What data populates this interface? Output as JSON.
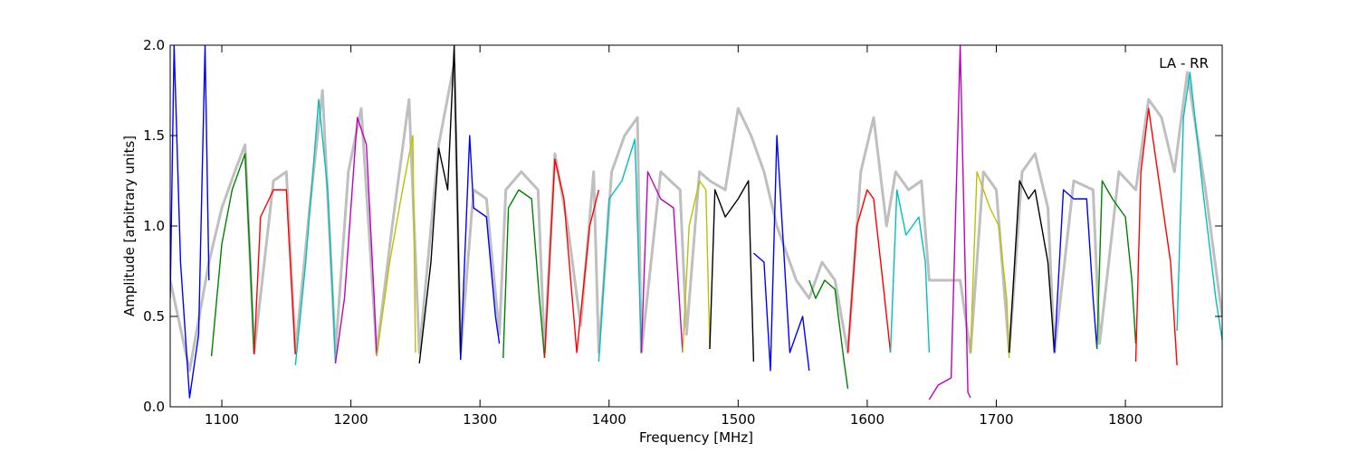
{
  "chart_data": {
    "type": "line",
    "annotation": "LA - RR",
    "xlabel": "Frequency [MHz]",
    "ylabel": "Amplitude [arbitrary units]",
    "xlim": [
      1060,
      1875
    ],
    "ylim": [
      0,
      2
    ],
    "xticks": [
      1100,
      1200,
      1300,
      1400,
      1500,
      1600,
      1700,
      1800
    ],
    "yticks": [
      {
        "value": 0,
        "label": "0.0"
      },
      {
        "value": 0.5,
        "label": "0.5"
      },
      {
        "value": 1,
        "label": "1.0"
      },
      {
        "value": 1.5,
        "label": "1.5"
      },
      {
        "value": 2,
        "label": "2.0"
      }
    ],
    "series": [
      {
        "color": "#bfbfbf",
        "x": [
          1060,
          1075,
          1090,
          1100,
          1110,
          1118,
          1125,
          1140,
          1150,
          1157,
          1168,
          1178,
          1188,
          1198,
          1208,
          1220,
          1232,
          1245,
          1253,
          1268,
          1280,
          1285,
          1295,
          1305,
          1315,
          1320,
          1332,
          1345,
          1350,
          1358,
          1368,
          1378,
          1388,
          1392,
          1402,
          1412,
          1422,
          1425,
          1440,
          1455,
          1460,
          1470,
          1478,
          1490,
          1500,
          1510,
          1520,
          1530,
          1545,
          1555,
          1565,
          1575,
          1585,
          1595,
          1605,
          1615,
          1622,
          1632,
          1642,
          1648,
          1660,
          1672,
          1680,
          1690,
          1700,
          1710,
          1720,
          1730,
          1740,
          1745,
          1760,
          1775,
          1780,
          1795,
          1808,
          1818,
          1828,
          1838,
          1848,
          1862,
          1875
        ],
        "values": [
          0.7,
          0.2,
          0.8,
          1.1,
          1.3,
          1.45,
          0.3,
          1.25,
          1.3,
          0.3,
          1.1,
          1.75,
          0.3,
          1.3,
          1.65,
          0.3,
          1.0,
          1.7,
          0.3,
          1.45,
          1.9,
          0.3,
          1.2,
          1.15,
          0.4,
          1.2,
          1.3,
          1.2,
          0.3,
          1.4,
          1.0,
          0.45,
          1.3,
          0.3,
          1.3,
          1.5,
          1.6,
          0.3,
          1.3,
          1.2,
          0.4,
          1.3,
          1.25,
          1.2,
          1.65,
          1.5,
          1.3,
          1.0,
          0.7,
          0.6,
          0.8,
          0.7,
          0.3,
          1.3,
          1.6,
          1.0,
          1.3,
          1.2,
          1.25,
          0.7,
          0.7,
          0.7,
          0.3,
          1.3,
          1.2,
          0.3,
          1.3,
          1.4,
          1.1,
          0.3,
          1.25,
          1.2,
          0.35,
          1.3,
          1.2,
          1.7,
          1.6,
          1.3,
          1.85,
          1.2,
          0.5
        ]
      },
      {
        "color": "#0000ff",
        "x": [
          1060,
          1063,
          1068,
          1075,
          1082,
          1087,
          1090
        ],
        "values": [
          0.6,
          2.0,
          0.8,
          0.05,
          0.4,
          2.0,
          0.7
        ]
      },
      {
        "color": "#008000",
        "x": [
          1092,
          1100,
          1108,
          1118,
          1122,
          1125
        ],
        "values": [
          0.28,
          0.9,
          1.2,
          1.4,
          0.8,
          0.29
        ]
      },
      {
        "color": "#ff0000",
        "x": [
          1125,
          1130,
          1140,
          1150,
          1153,
          1157
        ],
        "values": [
          0.29,
          1.05,
          1.2,
          1.2,
          0.8,
          0.29
        ]
      },
      {
        "color": "#00bfbf",
        "x": [
          1157,
          1165,
          1175,
          1182,
          1186,
          1188
        ],
        "values": [
          0.23,
          0.8,
          1.7,
          1.2,
          0.6,
          0.24
        ]
      },
      {
        "color": "#bf00bf",
        "x": [
          1188,
          1195,
          1205,
          1212,
          1218,
          1220
        ],
        "values": [
          0.24,
          0.6,
          1.6,
          1.45,
          0.6,
          0.28
        ]
      },
      {
        "color": "#bfbf00",
        "x": [
          1220,
          1230,
          1240,
          1248,
          1250
        ],
        "values": [
          0.28,
          0.8,
          1.2,
          1.5,
          0.3
        ]
      },
      {
        "color": "#000000",
        "x": [
          1253,
          1262,
          1268,
          1275,
          1280,
          1285
        ],
        "values": [
          0.24,
          0.8,
          1.43,
          1.2,
          2.0,
          0.26
        ]
      },
      {
        "color": "#0000ff",
        "x": [
          1285,
          1292,
          1295,
          1305,
          1312,
          1315
        ],
        "values": [
          0.26,
          1.5,
          1.1,
          1.05,
          0.5,
          0.35
        ]
      },
      {
        "color": "#008000",
        "x": [
          1318,
          1322,
          1330,
          1340,
          1346,
          1350
        ],
        "values": [
          0.27,
          1.1,
          1.2,
          1.15,
          0.6,
          0.27
        ]
      },
      {
        "color": "#ff0000",
        "x": [
          1350,
          1358,
          1365,
          1375,
          1385,
          1392
        ],
        "values": [
          0.27,
          1.37,
          1.15,
          0.3,
          1.0,
          1.2
        ]
      },
      {
        "color": "#00bfbf",
        "x": [
          1392,
          1400,
          1410,
          1420,
          1425
        ],
        "values": [
          0.25,
          1.15,
          1.25,
          1.48,
          0.3
        ]
      },
      {
        "color": "#bf00bf",
        "x": [
          1425,
          1430,
          1440,
          1450,
          1457
        ],
        "values": [
          0.3,
          1.3,
          1.15,
          1.1,
          0.3
        ]
      },
      {
        "color": "#bfbf00",
        "x": [
          1457,
          1462,
          1470,
          1475,
          1478
        ],
        "values": [
          0.3,
          1.0,
          1.25,
          1.2,
          0.32
        ]
      },
      {
        "color": "#000000",
        "x": [
          1478,
          1482,
          1490,
          1500,
          1508,
          1512
        ],
        "values": [
          0.32,
          1.2,
          1.05,
          1.15,
          1.25,
          0.25
        ]
      },
      {
        "color": "#0000ff",
        "x": [
          1512,
          1520,
          1525,
          1530,
          1540,
          1550,
          1555
        ],
        "values": [
          0.85,
          0.8,
          0.2,
          1.5,
          0.3,
          0.5,
          0.2
        ]
      },
      {
        "color": "#008000",
        "x": [
          1555,
          1560,
          1567,
          1575,
          1582,
          1585
        ],
        "values": [
          0.7,
          0.6,
          0.7,
          0.65,
          0.25,
          0.1
        ]
      },
      {
        "color": "#ff0000",
        "x": [
          1585,
          1592,
          1600,
          1605,
          1612,
          1618
        ],
        "values": [
          0.3,
          1.0,
          1.2,
          1.15,
          0.7,
          0.3
        ]
      },
      {
        "color": "#00bfbf",
        "x": [
          1618,
          1623,
          1630,
          1640,
          1645,
          1648
        ],
        "values": [
          0.3,
          1.2,
          0.95,
          1.05,
          0.8,
          0.3
        ]
      },
      {
        "color": "#bf00bf",
        "x": [
          1648,
          1655,
          1665,
          1672,
          1678,
          1680
        ],
        "values": [
          0.04,
          0.12,
          0.16,
          2.0,
          0.08,
          0.05
        ]
      },
      {
        "color": "#bfbf00",
        "x": [
          1680,
          1685,
          1695,
          1702,
          1708,
          1710
        ],
        "values": [
          0.3,
          1.3,
          1.1,
          1.0,
          0.6,
          0.27
        ]
      },
      {
        "color": "#000000",
        "x": [
          1710,
          1718,
          1725,
          1730,
          1740,
          1745
        ],
        "values": [
          0.3,
          1.25,
          1.15,
          1.2,
          0.8,
          0.3
        ]
      },
      {
        "color": "#0000ff",
        "x": [
          1745,
          1752,
          1760,
          1770,
          1775,
          1778
        ],
        "values": [
          0.3,
          1.2,
          1.15,
          1.15,
          0.6,
          0.32
        ]
      },
      {
        "color": "#008000",
        "x": [
          1778,
          1782,
          1790,
          1800,
          1805,
          1808
        ],
        "values": [
          0.32,
          1.25,
          1.15,
          1.05,
          0.7,
          0.35
        ]
      },
      {
        "color": "#ff0000",
        "x": [
          1808,
          1812,
          1818,
          1825,
          1835,
          1840
        ],
        "values": [
          0.25,
          1.3,
          1.65,
          1.3,
          0.8,
          0.23
        ]
      },
      {
        "color": "#00bfbf",
        "x": [
          1840,
          1845,
          1850,
          1860,
          1870,
          1875
        ],
        "values": [
          0.42,
          1.6,
          1.85,
          1.2,
          0.6,
          0.37
        ]
      }
    ]
  }
}
